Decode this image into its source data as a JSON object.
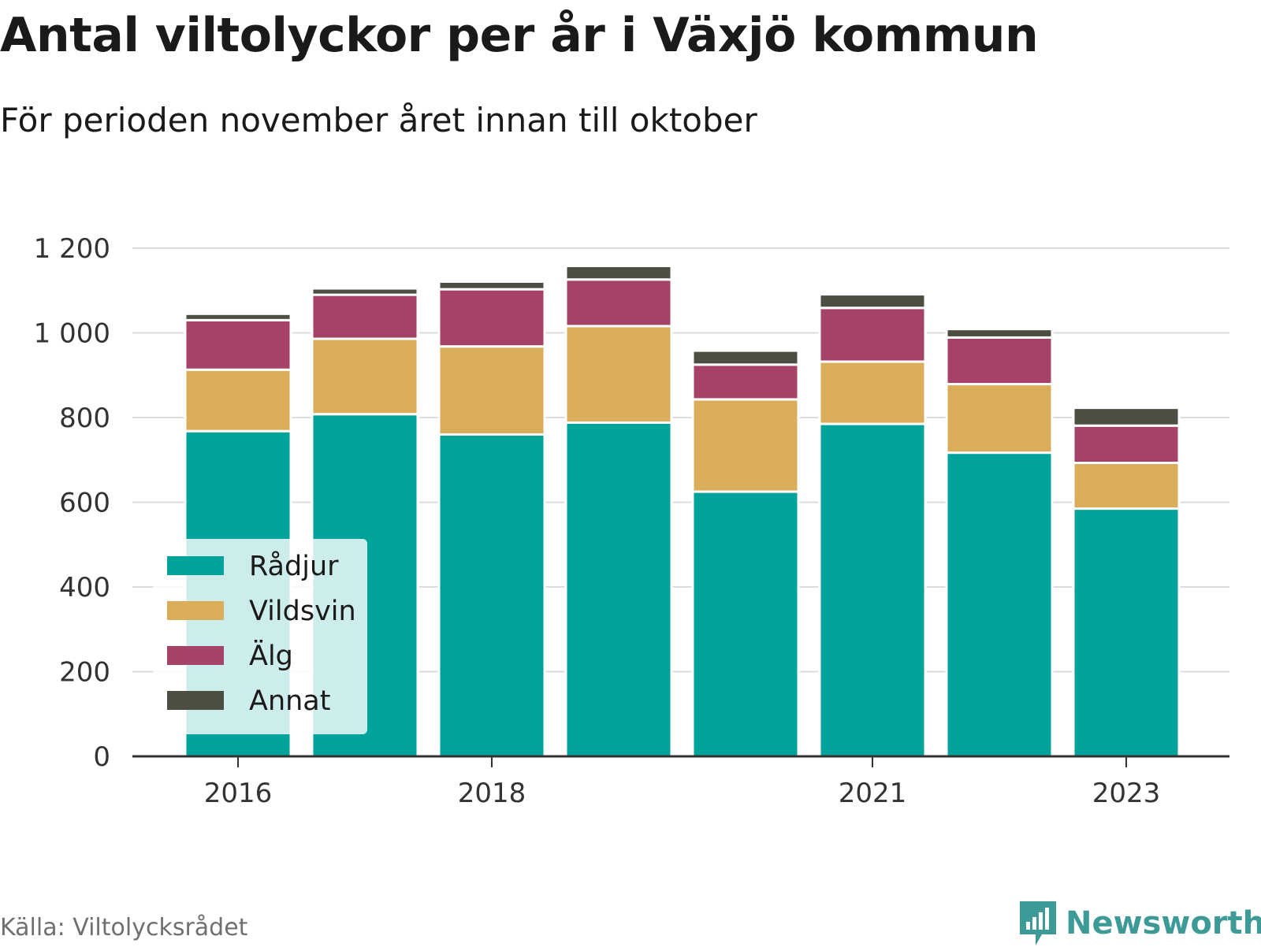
{
  "title": "Antal viltolyckor per år i Växjö kommun",
  "subtitle": "För perioden november året innan till oktober",
  "source": "Källa: Viltolycksrådet",
  "brand": {
    "name": "Newsworthy",
    "icon": "newsworthy-logo-icon",
    "color": "#3e9a97"
  },
  "chart_data": {
    "type": "bar",
    "stacked": true,
    "categories": [
      "2016",
      "2017",
      "2018",
      "2019",
      "2020",
      "2021",
      "2022",
      "2023"
    ],
    "x_tick_labels": [
      "2016",
      "",
      "2018",
      "",
      "",
      "2021",
      "",
      "2023"
    ],
    "series": [
      {
        "name": "Rådjur",
        "color": "#00a39a",
        "values": [
          768,
          808,
          760,
          788,
          625,
          785,
          717,
          585
        ]
      },
      {
        "name": "Vildsvin",
        "color": "#d9ad5a",
        "values": [
          145,
          178,
          208,
          228,
          218,
          147,
          162,
          108
        ]
      },
      {
        "name": "Älg",
        "color": "#a64168",
        "values": [
          117,
          104,
          135,
          110,
          82,
          127,
          110,
          88
        ]
      },
      {
        "name": "Annat",
        "color": "#4b4e40",
        "values": [
          15,
          15,
          18,
          32,
          33,
          32,
          20,
          42
        ]
      }
    ],
    "yticks": [
      0,
      200,
      400,
      600,
      800,
      1000,
      1200
    ],
    "ytick_labels": [
      "0",
      "200",
      "400",
      "600",
      "800",
      "1 000",
      "1 200"
    ],
    "ylim": [
      0,
      1200
    ],
    "xlabel": "",
    "ylabel": "",
    "grid": true,
    "legend_position": "bottom-left"
  }
}
